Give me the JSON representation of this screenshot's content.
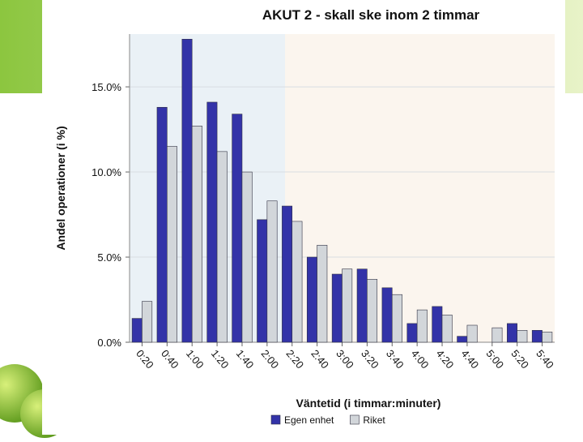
{
  "chart_data": {
    "type": "bar",
    "title": "AKUT 2 - skall ske inom 2 timmar",
    "x_label": "Väntetid (i timmar:minuter)",
    "y_label": "Andel operationer (i %)",
    "categories": [
      "0:20",
      "0:40",
      "1:00",
      "1:20",
      "1:40",
      "2:00",
      "2:20",
      "2:40",
      "3:00",
      "3:20",
      "3:40",
      "4:00",
      "4:20",
      "4:40",
      "5:00",
      "5:20",
      "5:40"
    ],
    "series": [
      {
        "name": "Egen enhet",
        "color": "#3333a8",
        "values": [
          1.4,
          13.8,
          17.8,
          14.1,
          13.4,
          7.2,
          8.0,
          5.0,
          4.0,
          4.3,
          3.2,
          1.1,
          2.1,
          0.35,
          0,
          1.1,
          0.7
        ]
      },
      {
        "name": "Riket",
        "color": "#d2d6da",
        "values": [
          2.4,
          11.5,
          12.7,
          11.2,
          10.0,
          8.3,
          7.1,
          5.7,
          4.3,
          3.7,
          2.8,
          1.9,
          1.6,
          1.0,
          0.85,
          0.7,
          0.6
        ]
      }
    ],
    "ylim": [
      0,
      18.1
    ],
    "yticks": [
      {
        "value": 0,
        "label": "0.0%"
      },
      {
        "value": 5,
        "label": "5.0%"
      },
      {
        "value": 10,
        "label": "10.0%"
      },
      {
        "value": 15,
        "label": "15.0%"
      }
    ],
    "grid": true,
    "legend": "bottom"
  }
}
